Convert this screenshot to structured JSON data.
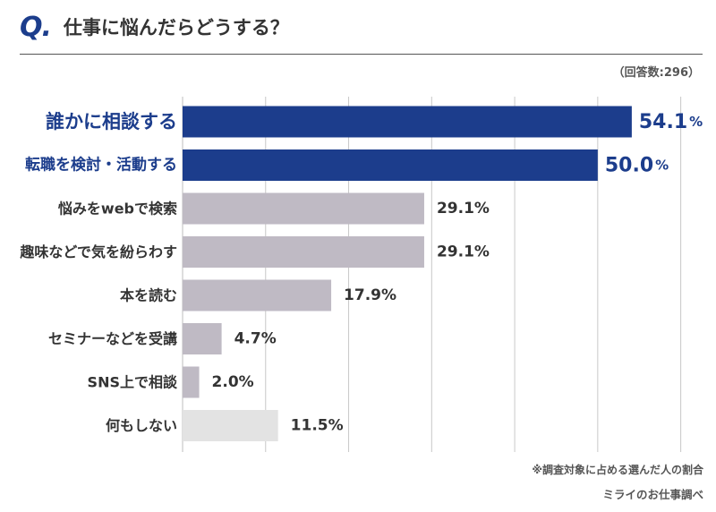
{
  "header": {
    "q_label": "Q.",
    "title": "仕事に悩んだらどうする？",
    "respondents": "（回答数:296）"
  },
  "footer": {
    "note": "※調査対象に占める選んだ人の割合",
    "source": "ミライのお仕事調べ"
  },
  "colors": {
    "highlight": "#1c3d8c",
    "normal": "#bfbac4",
    "muted": "#e3e3e3",
    "gridline": "#c8c8c8",
    "text_dark": "#333333"
  },
  "chart_data": {
    "type": "bar",
    "orientation": "horizontal",
    "title": "仕事に悩んだらどうする？",
    "unit": "%",
    "xlim": [
      0,
      60
    ],
    "grid": true,
    "categories": [
      "誰かに相談する",
      "転職を検討・活動する",
      "悩みをwebで検索",
      "趣味などで気を紛らわす",
      "本を読む",
      "セミナーなどを受講",
      "SNS上で相談",
      "何もしない"
    ],
    "values": [
      54.1,
      50.0,
      29.1,
      29.1,
      17.9,
      4.7,
      2.0,
      11.5
    ],
    "value_labels": [
      "54.1",
      "50.0",
      "29.1%",
      "29.1%",
      "17.9%",
      "4.7%",
      "2.0%",
      "11.5%"
    ],
    "styles": [
      "highlight",
      "highlight",
      "normal",
      "normal",
      "normal",
      "normal",
      "normal",
      "muted"
    ]
  }
}
